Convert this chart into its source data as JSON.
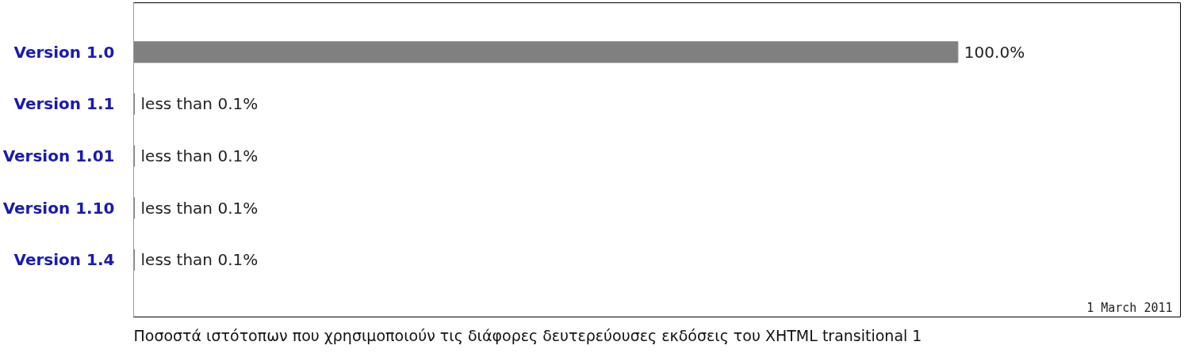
{
  "chart_data": {
    "type": "bar",
    "orientation": "horizontal",
    "categories": [
      "Version 1.0",
      "Version 1.1",
      "Version 1.01",
      "Version 1.10",
      "Version 1.4"
    ],
    "values": [
      100,
      0.1,
      0.1,
      0.1,
      0.1
    ],
    "value_labels": [
      "100.0%",
      "less than 0.1%",
      "less than 0.1%",
      "less than 0.1%",
      "less than 0.1%"
    ],
    "color": "#808080",
    "xlim": [
      0,
      127
    ],
    "annotations": [
      "1 March 2011",
      "Ποσοστά ιστότοπων που χρησιμοποιούν τις διάφορες δευτερεύουσες εκδόσεις του XHTML transitional 1"
    ],
    "grid": false
  }
}
